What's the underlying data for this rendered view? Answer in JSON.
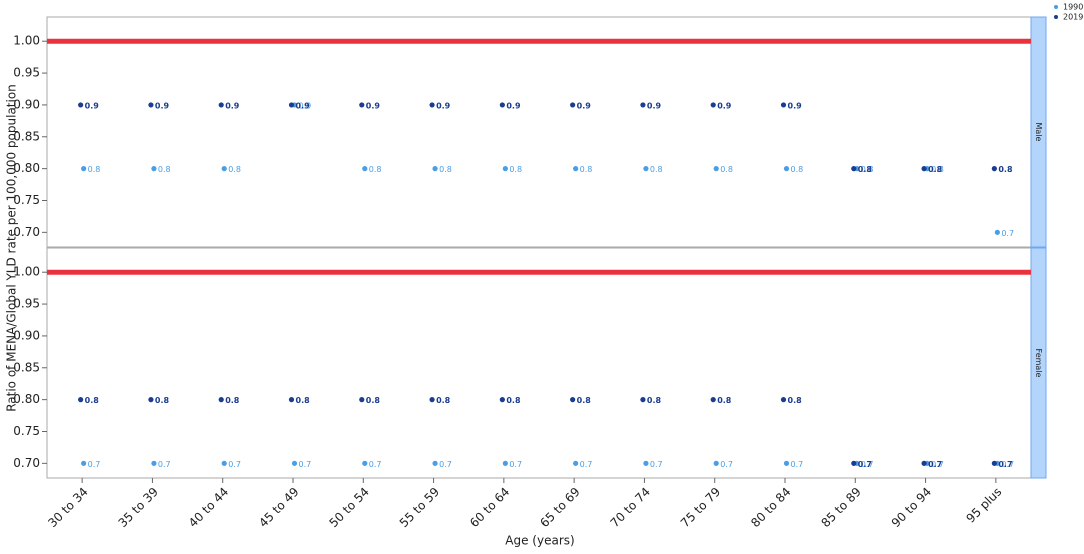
{
  "chart_data": {
    "type": "scatter",
    "x_label": "Age (years)",
    "y_label": "Ratio of MENA/Global YLD rate per 100,000 population",
    "categories": [
      "30 to 34",
      "35 to 39",
      "40 to 44",
      "45 to 49",
      "50 to 54",
      "55 to 59",
      "60 to 64",
      "65 to 69",
      "70 to 74",
      "75 to 79",
      "80 to 84",
      "85 to 89",
      "90 to 94",
      "95 plus"
    ],
    "ylim": [
      0.677,
      1.038
    ],
    "yticks": [
      {
        "value": 0.7,
        "label": "0.70"
      },
      {
        "value": 0.75,
        "label": "0.75"
      },
      {
        "value": 0.8,
        "label": "0.80"
      },
      {
        "value": 0.85,
        "label": "0.85"
      },
      {
        "value": 0.9,
        "label": "0.90"
      },
      {
        "value": 0.95,
        "label": "0.95"
      },
      {
        "value": 1,
        "label": "1.00"
      }
    ],
    "reference_line": {
      "value": 1,
      "color": "#e8333f"
    },
    "legend": [
      {
        "name": "1990",
        "color": "#4a9ee6"
      },
      {
        "name": "2019",
        "color": "#1a3d8f"
      }
    ],
    "panels": [
      {
        "name": "Male",
        "series": [
          {
            "values": [
              0.8,
              0.8,
              0.8,
              0.9,
              0.8,
              0.8,
              0.8,
              0.8,
              0.8,
              0.8,
              0.8,
              0.8,
              0.8,
              0.7
            ]
          },
          {
            "values": [
              0.9,
              0.9,
              0.9,
              0.9,
              0.9,
              0.9,
              0.9,
              0.9,
              0.9,
              0.9,
              0.9,
              0.8,
              0.8,
              0.8
            ]
          }
        ]
      },
      {
        "name": "Female",
        "series": [
          {
            "values": [
              0.7,
              0.7,
              0.7,
              0.7,
              0.7,
              0.7,
              0.7,
              0.7,
              0.7,
              0.7,
              0.7,
              0.7,
              0.7,
              0.7
            ]
          },
          {
            "values": [
              0.8,
              0.8,
              0.8,
              0.8,
              0.8,
              0.8,
              0.8,
              0.8,
              0.8,
              0.8,
              0.8,
              0.7,
              0.7,
              0.7
            ]
          }
        ]
      }
    ]
  }
}
